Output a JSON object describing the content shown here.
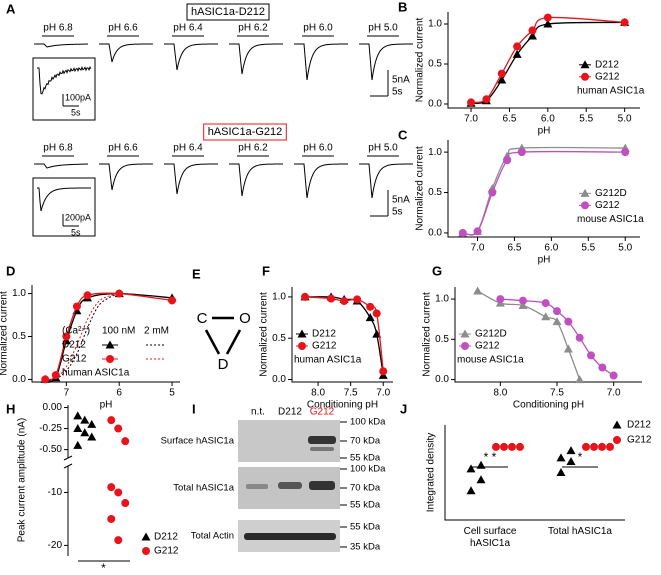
{
  "chart_data": [
    {
      "type": "traces",
      "panel": "A",
      "groups": [
        {
          "title": "hASIC1a-D212",
          "color": "#000000",
          "conditions": [
            "pH 6.8",
            "pH 6.6",
            "pH 6.4",
            "pH 6.2",
            "pH 6.0",
            "pH 5.0"
          ],
          "scale": [
            "5nA",
            "5s"
          ],
          "inset_scale": [
            "100pA",
            "5s"
          ]
        },
        {
          "title": "hASIC1a-G212",
          "color": "#e8141b",
          "conditions": [
            "pH 6.8",
            "pH 6.6",
            "pH 6.4",
            "pH 6.2",
            "pH 6.0",
            "pH 5.0"
          ],
          "scale": [
            "5nA",
            "5s"
          ],
          "inset_scale": [
            "200pA",
            "5s"
          ]
        }
      ]
    },
    {
      "type": "line",
      "panel": "B",
      "xlabel": "pH",
      "ylabel": "Normalized current",
      "annotation": "human ASIC1a",
      "legend": "center right",
      "xlim": [
        7.3,
        4.8
      ],
      "xticks": [
        {
          "value": 7,
          "label": "7.0"
        },
        6.5,
        {
          "value": 6,
          "label": "6.0"
        },
        5.5,
        {
          "value": 5,
          "label": "5.0"
        }
      ],
      "ylim": [
        -0.05,
        1.15
      ],
      "yticks": [
        {
          "value": 0,
          "label": "0.0"
        },
        0.5,
        {
          "value": 1,
          "label": "1.0"
        }
      ],
      "series": [
        {
          "name": "D212",
          "color": "#000000",
          "marker": "triangle",
          "x": [
            7.0,
            6.8,
            6.6,
            6.4,
            6.2,
            6.0,
            5.0
          ],
          "values": [
            0.01,
            0.04,
            0.3,
            0.62,
            0.85,
            1.0,
            1.02
          ]
        },
        {
          "name": "G212",
          "color": "#e8141b",
          "marker": "circle",
          "x": [
            7.0,
            6.8,
            6.6,
            6.4,
            6.2,
            6.0,
            5.0
          ],
          "values": [
            0.02,
            0.06,
            0.38,
            0.72,
            0.92,
            1.08,
            1.02
          ]
        }
      ]
    },
    {
      "type": "line",
      "panel": "C",
      "xlabel": "pH",
      "ylabel": "Normalized current",
      "annotation": "mouse ASIC1a",
      "legend": "center right",
      "xlim": [
        7.4,
        4.8
      ],
      "xticks": [
        {
          "value": 7,
          "label": "7.0"
        },
        6.5,
        {
          "value": 6,
          "label": "6.0"
        },
        5.5,
        {
          "value": 5,
          "label": "5.0"
        }
      ],
      "ylim": [
        -0.05,
        1.15
      ],
      "yticks": [
        {
          "value": 0,
          "label": "0.0"
        },
        0.5,
        {
          "value": 1,
          "label": "1.0"
        }
      ],
      "series": [
        {
          "name": "G212D",
          "color": "#8c8c8c",
          "marker": "triangle",
          "x": [
            7.2,
            7.0,
            6.8,
            6.6,
            6.4,
            5.0
          ],
          "values": [
            0.0,
            0.02,
            0.55,
            0.95,
            1.05,
            1.05
          ]
        },
        {
          "name": "G212",
          "color": "#c04fc0",
          "marker": "circle",
          "x": [
            7.2,
            7.0,
            6.8,
            6.6,
            6.4,
            5.0
          ],
          "values": [
            0.0,
            0.02,
            0.5,
            0.9,
            1.0,
            1.0
          ]
        }
      ]
    },
    {
      "type": "line",
      "panel": "D",
      "xlabel": "pH",
      "ylabel": "Normalized current",
      "annotation": "human ASIC1a",
      "legend": "ca-table",
      "legend_header": [
        "(Ca²⁺)",
        "100 nM",
        "2 mM"
      ],
      "xlim": [
        7.65,
        4.85
      ],
      "xticks": [
        7,
        6,
        5
      ],
      "ylim": [
        -0.03,
        1.1
      ],
      "yticks": [
        {
          "value": 0,
          "label": "0.0"
        },
        0.5,
        {
          "value": 1,
          "label": "1.0"
        }
      ],
      "series": [
        {
          "name": "D212",
          "color": "#000000",
          "marker": "triangle",
          "x": [
            7.4,
            7.2,
            7.0,
            6.8,
            6.6,
            6.0,
            5.0
          ],
          "values": [
            0.0,
            0.02,
            0.45,
            0.8,
            0.95,
            1.0,
            0.95
          ]
        },
        {
          "name": "G212",
          "color": "#e8141b",
          "marker": "circle",
          "x": [
            7.4,
            7.2,
            7.0,
            6.8,
            6.6,
            6.0,
            5.0
          ],
          "values": [
            0.0,
            0.05,
            0.5,
            0.85,
            0.98,
            1.0,
            0.92
          ]
        }
      ],
      "dotted_curves": [
        {
          "color": "#000000",
          "x": [
            7.2,
            7.0,
            6.8,
            6.6,
            6.4,
            6.2,
            6.0
          ],
          "values": [
            0.0,
            0.1,
            0.3,
            0.6,
            0.85,
            0.95,
            1.0
          ]
        },
        {
          "color": "#e8141b",
          "x": [
            7.2,
            7.0,
            6.8,
            6.6,
            6.4,
            6.2,
            6.0
          ],
          "values": [
            0.0,
            0.15,
            0.4,
            0.7,
            0.9,
            0.97,
            1.0
          ]
        }
      ]
    },
    {
      "type": "line",
      "panel": "F",
      "xlabel": "Conditioning pH",
      "ylabel": "Normalized current",
      "annotation": "human ASIC1a",
      "legend": "lower left",
      "xlim": [
        8.4,
        6.85
      ],
      "xticks": [
        {
          "value": 8,
          "label": "8.0"
        },
        7.5,
        {
          "value": 7,
          "label": "7.0"
        }
      ],
      "ylim": [
        -0.03,
        1.12
      ],
      "yticks": [
        {
          "value": 0,
          "label": "0.0"
        },
        0.5,
        {
          "value": 1,
          "label": "1.0"
        }
      ],
      "series": [
        {
          "name": "D212",
          "color": "#000000",
          "marker": "triangle",
          "x": [
            8.2,
            7.8,
            7.6,
            7.4,
            7.2,
            7.1,
            7.0
          ],
          "values": [
            1.0,
            1.0,
            0.97,
            0.95,
            0.75,
            0.55,
            0.05
          ]
        },
        {
          "name": "G212",
          "color": "#e8141b",
          "marker": "circle",
          "x": [
            8.2,
            7.8,
            7.6,
            7.4,
            7.2,
            7.1,
            7.0
          ],
          "values": [
            1.0,
            0.98,
            0.95,
            0.97,
            0.88,
            0.8,
            0.1
          ]
        }
      ]
    },
    {
      "type": "line",
      "panel": "G",
      "xlabel": "Conditioning pH",
      "ylabel": "Normalized current",
      "annotation": "mouse ASIC1a",
      "legend": "lower left",
      "xlim": [
        8.4,
        6.75
      ],
      "xticks": [
        {
          "value": 8,
          "label": "8.0"
        },
        7.5,
        {
          "value": 7,
          "label": "7.0"
        }
      ],
      "ylim": [
        -0.03,
        1.15
      ],
      "yticks": [
        {
          "value": 0,
          "label": "0.0"
        },
        0.5,
        {
          "value": 1,
          "label": "1.0"
        }
      ],
      "series": [
        {
          "name": "G212D",
          "color": "#8c8c8c",
          "marker": "triangle",
          "x": [
            8.2,
            8.0,
            7.8,
            7.6,
            7.5,
            7.4,
            7.3
          ],
          "values": [
            1.1,
            0.95,
            0.92,
            0.78,
            0.72,
            0.38,
            0.0
          ]
        },
        {
          "name": "G212",
          "color": "#c04fc0",
          "marker": "circle",
          "x": [
            8.0,
            7.8,
            7.6,
            7.5,
            7.4,
            7.3,
            7.2,
            7.1,
            7.0
          ],
          "values": [
            1.0,
            0.98,
            0.95,
            0.85,
            0.72,
            0.52,
            0.3,
            0.15,
            0.05
          ]
        }
      ]
    },
    {
      "type": "brokendot",
      "panel": "H",
      "ylabel": "Peak current amplitude (nA)",
      "annotation": "*",
      "segments": [
        {
          "ylim": [
            -0.6,
            0.03
          ],
          "yticks": [
            {
              "value": 0,
              "label": "0.00"
            },
            -0.25,
            {
              "value": -0.5,
              "label": "-0.50"
            }
          ]
        },
        {
          "ylim": [
            -22,
            -5
          ],
          "yticks": [
            -10,
            -20
          ]
        }
      ],
      "series": [
        {
          "name": "D212",
          "color": "#000000",
          "marker": "triangle",
          "values": [
            -0.1,
            -0.15,
            -0.2,
            -0.25,
            -0.3,
            -0.35,
            -0.45
          ]
        },
        {
          "name": "G212",
          "color": "#e8141b",
          "marker": "circle",
          "values": [
            -0.15,
            -0.25,
            -0.4,
            -9,
            -10,
            -12,
            -15,
            -19
          ]
        }
      ]
    },
    {
      "type": "dot",
      "panel": "J",
      "ylabel": "Integrated density",
      "categories": [
        "Cell surface hASIC1a",
        "Total hASIC1a"
      ],
      "annotations": [
        "* *",
        "*"
      ],
      "ylim": [
        0,
        1.3
      ],
      "series": [
        {
          "name": "D212",
          "color": "#000000",
          "marker": "triangle",
          "values": [
            [
              0.4,
              0.55,
              0.7,
              0.75
            ],
            [
              0.65,
              0.8,
              0.85,
              0.95
            ]
          ]
        },
        {
          "name": "G212",
          "color": "#e8141b",
          "marker": "circle",
          "values": [
            [
              1,
              1,
              1,
              1
            ],
            [
              1,
              1,
              1,
              1
            ]
          ]
        }
      ]
    }
  ],
  "diagram": {
    "panel": "E",
    "states": [
      "C",
      "O",
      "D"
    ]
  },
  "blot": {
    "panel": "I",
    "lanes": [
      "n.t.",
      "D212",
      "G212"
    ],
    "rows": [
      {
        "label": "Surface hASIC1a",
        "markers": [
          "100 kDa",
          "70 kDa",
          "55 kDa"
        ]
      },
      {
        "label": "Total hASIC1a",
        "markers": [
          "100 kDa",
          "70 kDa",
          "55 kDa"
        ]
      },
      {
        "label": "Total Actin",
        "markers": [
          "55 kDa",
          "35 kDa"
        ]
      }
    ]
  }
}
